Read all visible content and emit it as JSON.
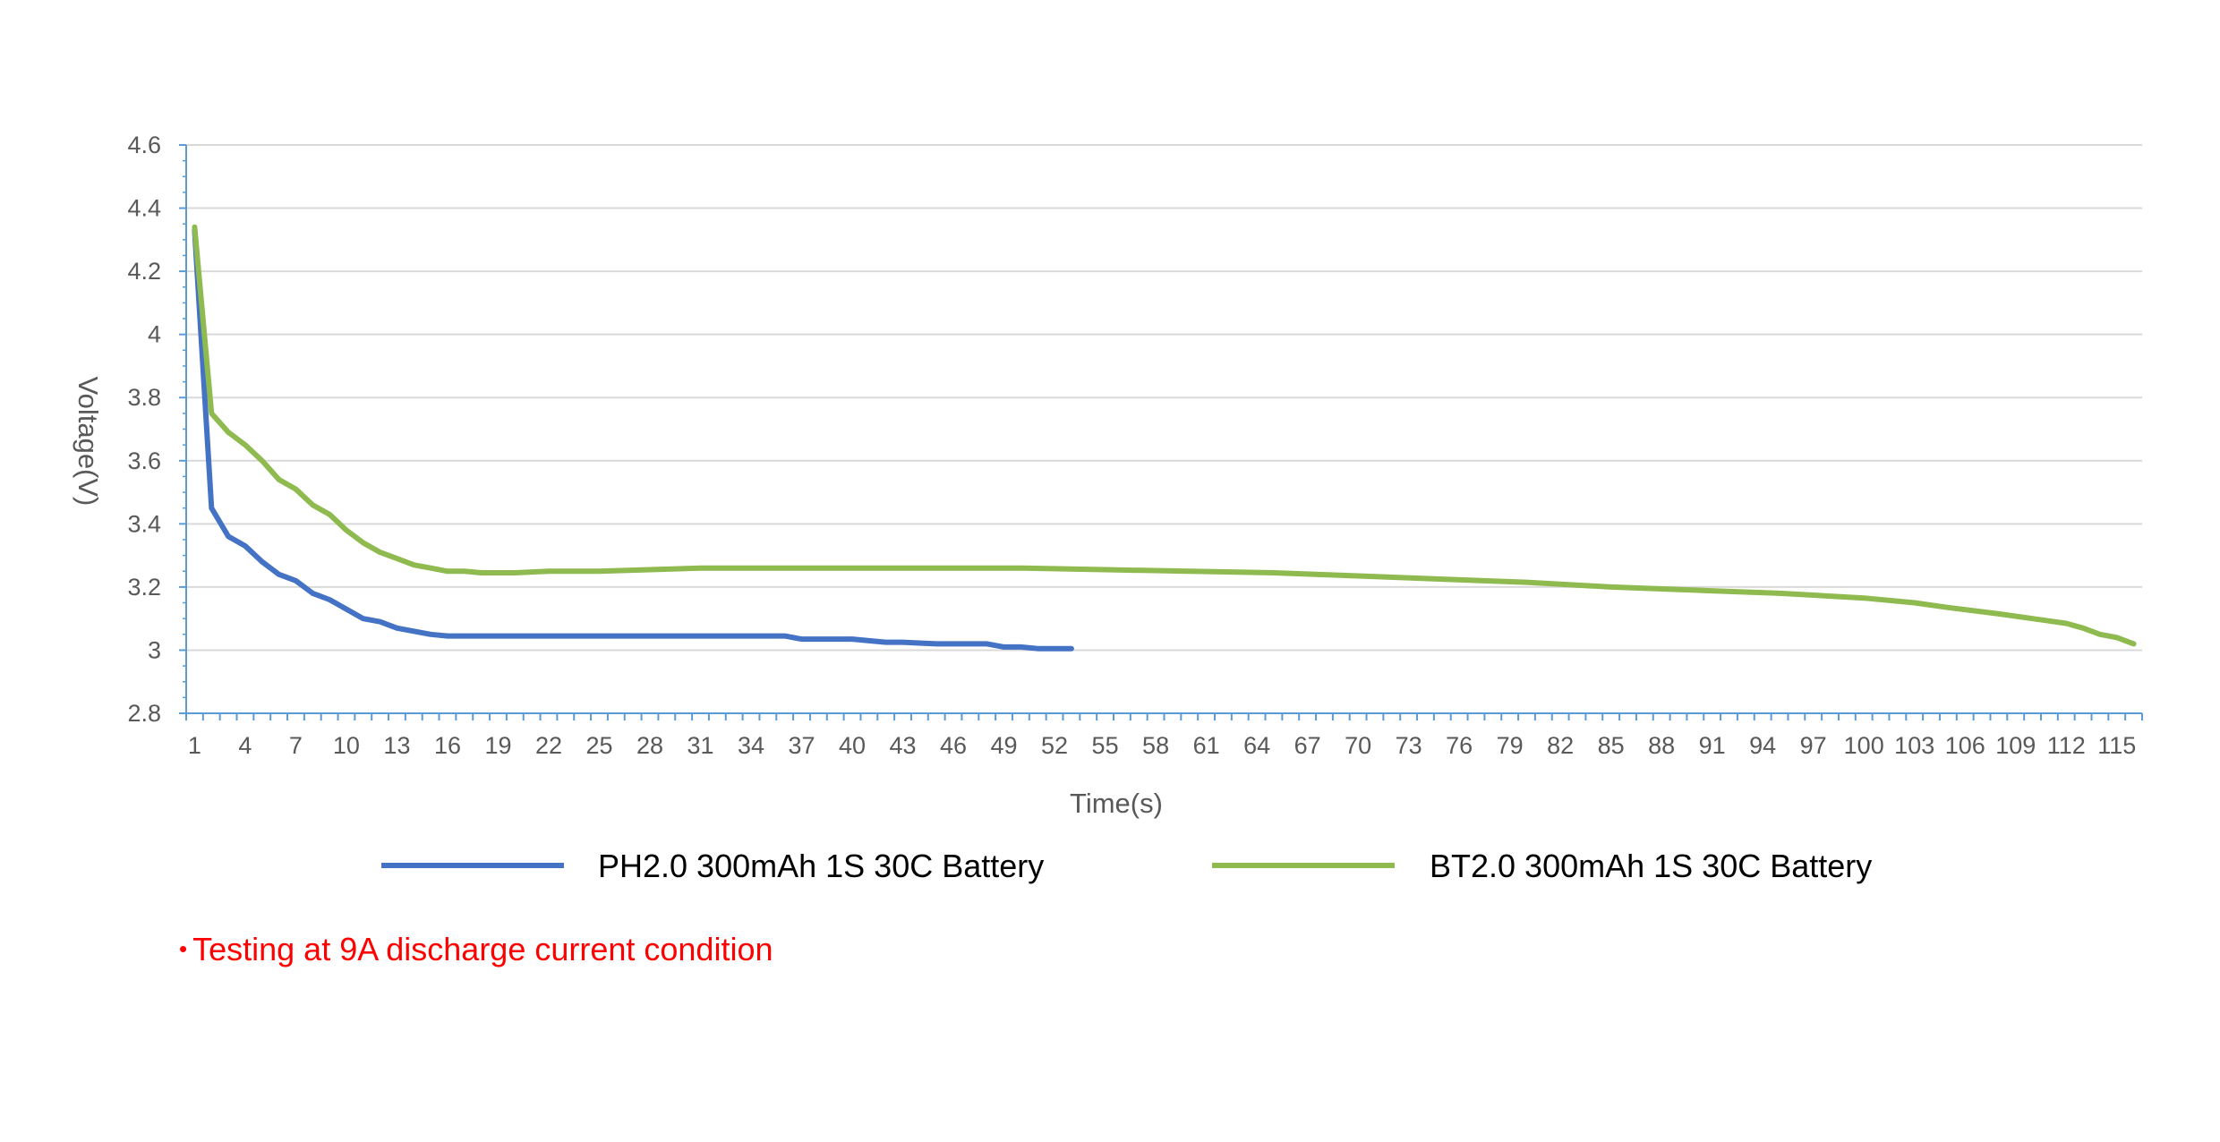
{
  "chart_data": {
    "type": "line",
    "xlabel": "Time(s)",
    "ylabel": "Voltage(V)",
    "ylim": [
      2.8,
      4.6
    ],
    "yticks": [
      "4.6",
      "4.4",
      "4.2",
      "4",
      "3.8",
      "3.6",
      "3.4",
      "3.2",
      "3",
      "2.8"
    ],
    "xlim": [
      1,
      116
    ],
    "xticks": [
      "1",
      "4",
      "7",
      "10",
      "13",
      "16",
      "19",
      "22",
      "25",
      "28",
      "31",
      "34",
      "37",
      "40",
      "43",
      "46",
      "49",
      "52",
      "55",
      "58",
      "61",
      "64",
      "67",
      "70",
      "73",
      "76",
      "79",
      "82",
      "85",
      "88",
      "91",
      "94",
      "97",
      "100",
      "103",
      "106",
      "109",
      "112",
      "115"
    ],
    "grid": "horizontal",
    "legend_position": "bottom",
    "series": [
      {
        "name": "PH2.0 300mAh 1S 30C Battery",
        "color": "#4472c4",
        "x": [
          1,
          2,
          3,
          4,
          5,
          6,
          7,
          8,
          9,
          10,
          11,
          12,
          13,
          14,
          15,
          16,
          18,
          20,
          22,
          25,
          28,
          31,
          34,
          36,
          37,
          40,
          42,
          43,
          45,
          46,
          48,
          49,
          50,
          51,
          53
        ],
        "y": [
          4.33,
          3.45,
          3.36,
          3.33,
          3.28,
          3.24,
          3.22,
          3.18,
          3.16,
          3.13,
          3.1,
          3.09,
          3.07,
          3.06,
          3.05,
          3.045,
          3.045,
          3.045,
          3.045,
          3.045,
          3.045,
          3.045,
          3.045,
          3.045,
          3.035,
          3.035,
          3.025,
          3.025,
          3.02,
          3.02,
          3.02,
          3.01,
          3.01,
          3.005,
          3.005
        ]
      },
      {
        "name": "BT2.0 300mAh 1S 30C Battery",
        "color": "#8fba4f",
        "x": [
          1,
          2,
          3,
          4,
          5,
          6,
          7,
          8,
          9,
          10,
          11,
          12,
          13,
          14,
          15,
          16,
          17,
          18,
          20,
          22,
          25,
          28,
          31,
          35,
          40,
          45,
          50,
          55,
          60,
          65,
          70,
          75,
          80,
          85,
          90,
          95,
          100,
          103,
          105,
          108,
          110,
          112,
          113,
          114,
          115,
          116
        ],
        "y": [
          4.34,
          3.75,
          3.69,
          3.65,
          3.6,
          3.54,
          3.51,
          3.46,
          3.43,
          3.38,
          3.34,
          3.31,
          3.29,
          3.27,
          3.26,
          3.25,
          3.25,
          3.245,
          3.245,
          3.25,
          3.25,
          3.255,
          3.26,
          3.26,
          3.26,
          3.26,
          3.26,
          3.255,
          3.25,
          3.245,
          3.235,
          3.225,
          3.215,
          3.2,
          3.19,
          3.18,
          3.165,
          3.15,
          3.135,
          3.115,
          3.1,
          3.085,
          3.07,
          3.05,
          3.04,
          3.02
        ]
      }
    ]
  },
  "note": "Testing at 9A discharge current condition"
}
